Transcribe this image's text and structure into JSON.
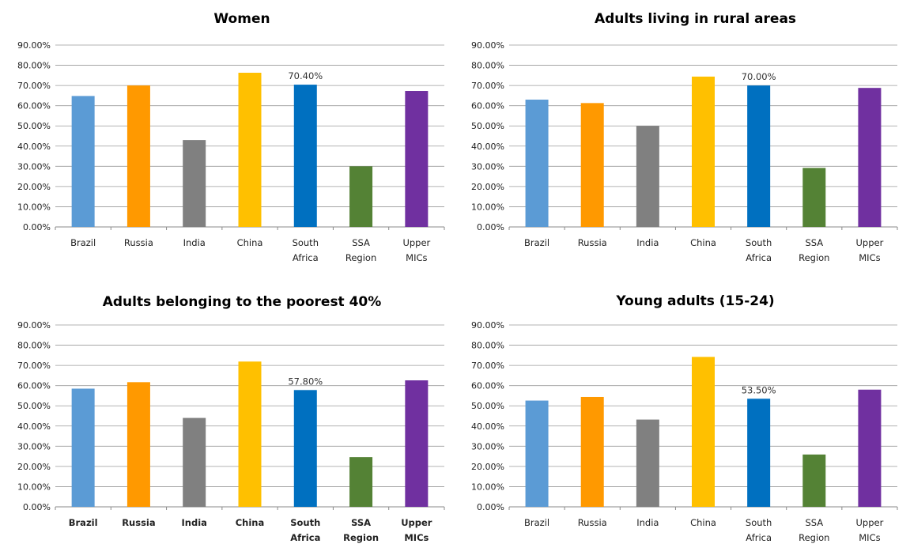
{
  "chart_data": [
    {
      "type": "bar",
      "title": "Women",
      "categories": [
        [
          "Brazil"
        ],
        [
          "Russia"
        ],
        [
          "India"
        ],
        [
          "China"
        ],
        [
          "South",
          "Africa"
        ],
        [
          "SSA",
          "Region"
        ],
        [
          "Upper",
          "MICs"
        ]
      ],
      "values": [
        64.8,
        70.0,
        43.0,
        76.3,
        70.4,
        30.0,
        67.3
      ],
      "data_labels": [
        {
          "index": 4,
          "text": "70.40%"
        }
      ],
      "y_ticks": [
        "0.00%",
        "10.00%",
        "20.00%",
        "30.00%",
        "40.00%",
        "50.00%",
        "60.00%",
        "70.00%",
        "80.00%",
        "90.00%"
      ],
      "ylim": [
        0,
        90
      ],
      "grid": true,
      "legend": "none",
      "colors": [
        "#5b9bd5",
        "#ff9900",
        "#808080",
        "#ffc000",
        "#0070c0",
        "#548235",
        "#7030a0"
      ]
    },
    {
      "type": "bar",
      "title": "Adults living in rural areas",
      "categories": [
        [
          "Brazil"
        ],
        [
          "Russia"
        ],
        [
          "India"
        ],
        [
          "China"
        ],
        [
          "South",
          "Africa"
        ],
        [
          "SSA",
          "Region"
        ],
        [
          "Upper",
          "MICs"
        ]
      ],
      "values": [
        63.0,
        61.3,
        50.0,
        74.4,
        70.0,
        29.2,
        68.8
      ],
      "data_labels": [
        {
          "index": 4,
          "text": "70.00%"
        }
      ],
      "y_ticks": [
        "0.00%",
        "10.00%",
        "20.00%",
        "30.00%",
        "40.00%",
        "50.00%",
        "60.00%",
        "70.00%",
        "80.00%",
        "90.00%"
      ],
      "ylim": [
        0,
        90
      ],
      "grid": true,
      "legend": "none",
      "colors": [
        "#5b9bd5",
        "#ff9900",
        "#808080",
        "#ffc000",
        "#0070c0",
        "#548235",
        "#7030a0"
      ]
    },
    {
      "type": "bar",
      "title": "Adults belonging to the poorest 40%",
      "categories": [
        [
          "Brazil"
        ],
        [
          "Russia"
        ],
        [
          "India"
        ],
        [
          "China"
        ],
        [
          "South",
          "Africa"
        ],
        [
          "SSA",
          "Region"
        ],
        [
          "Upper",
          "MICs"
        ]
      ],
      "values": [
        58.5,
        61.7,
        44.0,
        71.9,
        57.8,
        24.6,
        62.6
      ],
      "data_labels": [
        {
          "index": 4,
          "text": "57.80%"
        }
      ],
      "y_ticks": [
        "0.00%",
        "10.00%",
        "20.00%",
        "30.00%",
        "40.00%",
        "50.00%",
        "60.00%",
        "70.00%",
        "80.00%",
        "90.00%"
      ],
      "ylim": [
        0,
        90
      ],
      "grid": true,
      "legend": "none",
      "bold_categories": true,
      "colors": [
        "#5b9bd5",
        "#ff9900",
        "#808080",
        "#ffc000",
        "#0070c0",
        "#548235",
        "#7030a0"
      ]
    },
    {
      "type": "bar",
      "title": "Young adults (15-24)",
      "categories": [
        [
          "Brazil"
        ],
        [
          "Russia"
        ],
        [
          "India"
        ],
        [
          "China"
        ],
        [
          "South",
          "Africa"
        ],
        [
          "SSA",
          "Region"
        ],
        [
          "Upper",
          "MICs"
        ]
      ],
      "values": [
        52.6,
        54.4,
        43.2,
        74.2,
        53.5,
        25.9,
        58.0
      ],
      "data_labels": [
        {
          "index": 4,
          "text": "53.50%"
        }
      ],
      "y_ticks": [
        "0.00%",
        "10.00%",
        "20.00%",
        "30.00%",
        "40.00%",
        "50.00%",
        "60.00%",
        "70.00%",
        "80.00%",
        "90.00%"
      ],
      "ylim": [
        0,
        90
      ],
      "grid": true,
      "legend": "none",
      "colors": [
        "#5b9bd5",
        "#ff9900",
        "#808080",
        "#ffc000",
        "#0070c0",
        "#548235",
        "#7030a0"
      ]
    }
  ]
}
